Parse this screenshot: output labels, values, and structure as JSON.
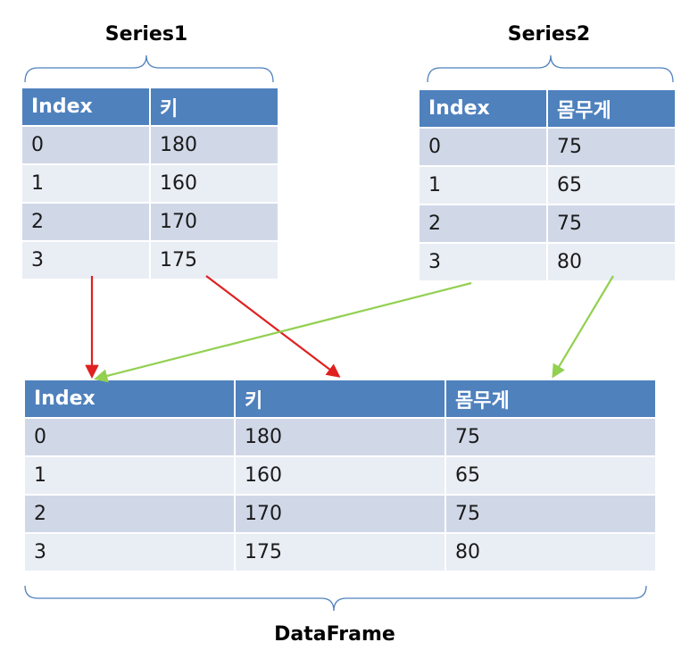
{
  "series1": {
    "title": "Series1",
    "headers": [
      "Index",
      "키"
    ],
    "rows": [
      [
        "0",
        "180"
      ],
      [
        "1",
        "160"
      ],
      [
        "2",
        "170"
      ],
      [
        "3",
        "175"
      ]
    ]
  },
  "series2": {
    "title": "Series2",
    "headers": [
      "Index",
      "몸무게"
    ],
    "rows": [
      [
        "0",
        "75"
      ],
      [
        "1",
        "65"
      ],
      [
        "2",
        "75"
      ],
      [
        "3",
        "80"
      ]
    ]
  },
  "dataframe": {
    "title": "DataFrame",
    "headers": [
      "Index",
      "키",
      "몸무게"
    ],
    "rows": [
      [
        "0",
        "180",
        "75"
      ],
      [
        "1",
        "160",
        "65"
      ],
      [
        "2",
        "170",
        "75"
      ],
      [
        "3",
        "175",
        "80"
      ]
    ]
  },
  "colors": {
    "header": "#4f81bd",
    "row_dark": "#d0d8e8",
    "row_light": "#e9edf4",
    "brace": "#4f81bd",
    "arrow_series1": "#e02020",
    "arrow_series2": "#92d050"
  }
}
